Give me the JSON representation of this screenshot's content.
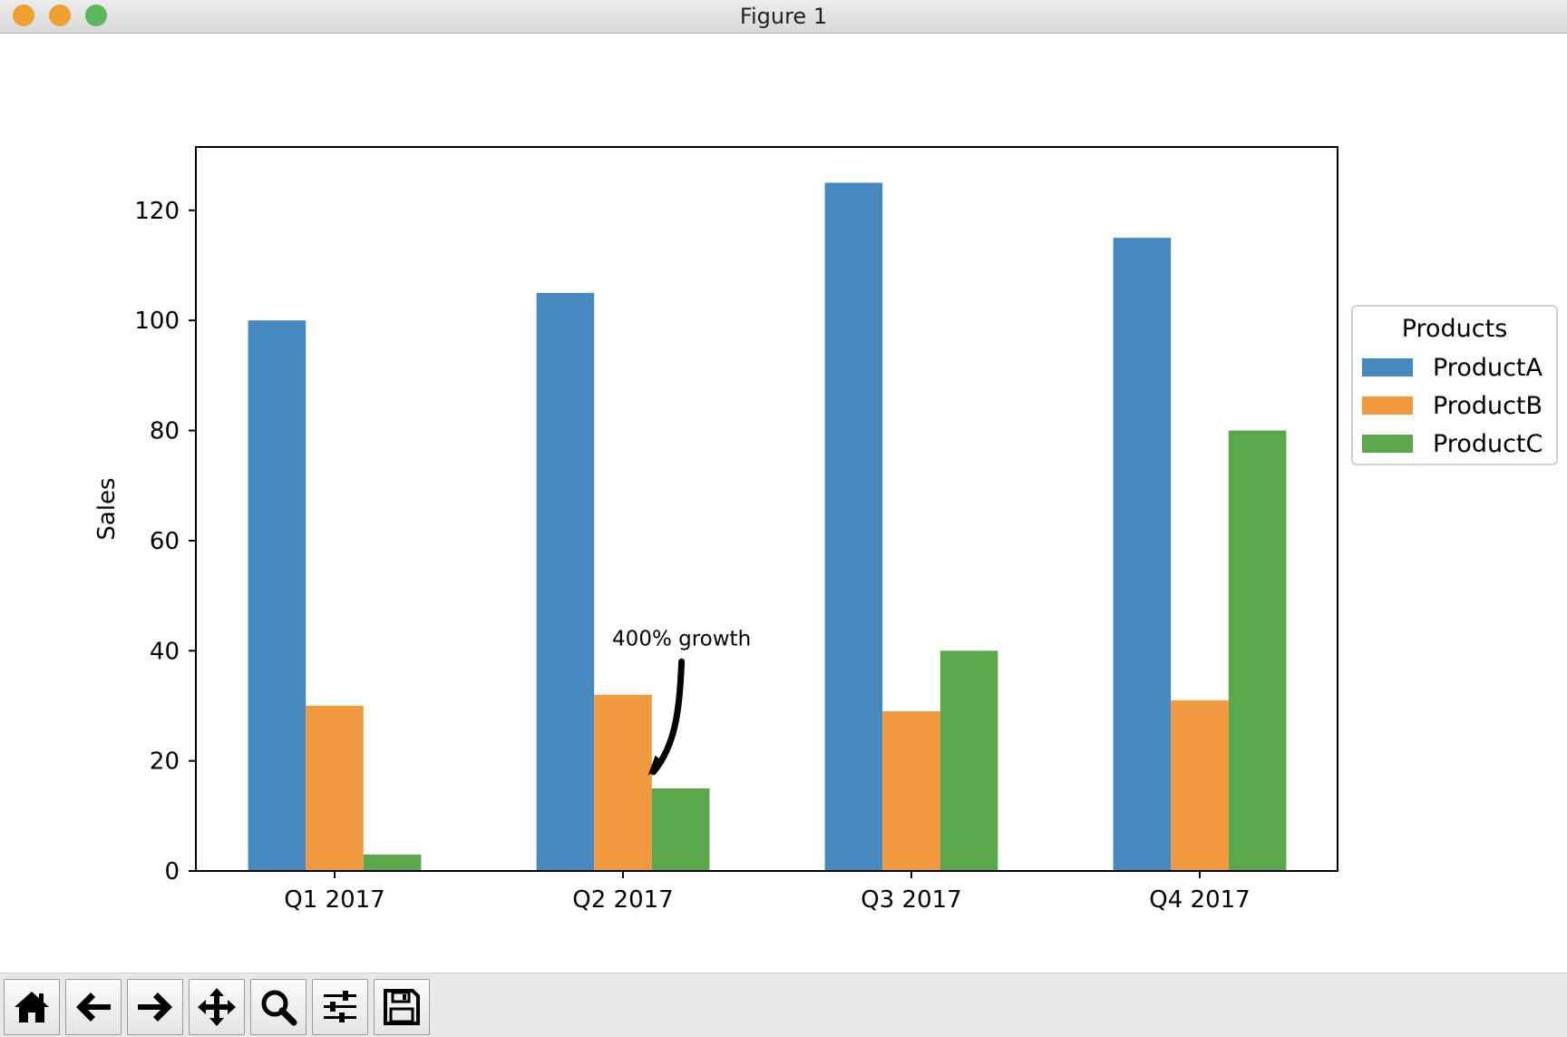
{
  "window": {
    "title": "Figure 1",
    "lights": [
      {
        "name": "close",
        "color": "#F0A030"
      },
      {
        "name": "minimize",
        "color": "#F0A030"
      },
      {
        "name": "zoom",
        "color": "#5CB85C"
      }
    ]
  },
  "toolbar": {
    "buttons": [
      {
        "name": "home",
        "icon": "home-icon"
      },
      {
        "name": "back",
        "icon": "arrow-left-icon"
      },
      {
        "name": "forward",
        "icon": "arrow-right-icon"
      },
      {
        "name": "pan",
        "icon": "move-icon"
      },
      {
        "name": "zoom",
        "icon": "magnifier-icon"
      },
      {
        "name": "configure-subplots",
        "icon": "sliders-icon"
      },
      {
        "name": "save",
        "icon": "floppy-disk-icon"
      }
    ]
  },
  "chart_data": {
    "type": "bar",
    "title": "",
    "xlabel": "",
    "ylabel": "Sales",
    "categories": [
      "Q1 2017",
      "Q2 2017",
      "Q3 2017",
      "Q4 2017"
    ],
    "series": [
      {
        "name": "ProductA",
        "color": "#4689C0",
        "values": [
          100,
          105,
          125,
          115
        ]
      },
      {
        "name": "ProductB",
        "color": "#F0993E",
        "values": [
          30,
          32,
          29,
          31
        ]
      },
      {
        "name": "ProductC",
        "color": "#5BA74C",
        "values": [
          3,
          15,
          40,
          80
        ]
      }
    ],
    "ylim": [
      0,
      131.5
    ],
    "yticks": [
      0,
      20,
      40,
      60,
      80,
      100,
      120
    ],
    "grid": false,
    "legend": {
      "title": "Products",
      "placement": "outside-right"
    },
    "annotations": [
      {
        "text": "400% growth",
        "category": "Q2 2017",
        "series": "ProductC",
        "text_y": 40,
        "arrow_to_y": 18
      }
    ]
  }
}
